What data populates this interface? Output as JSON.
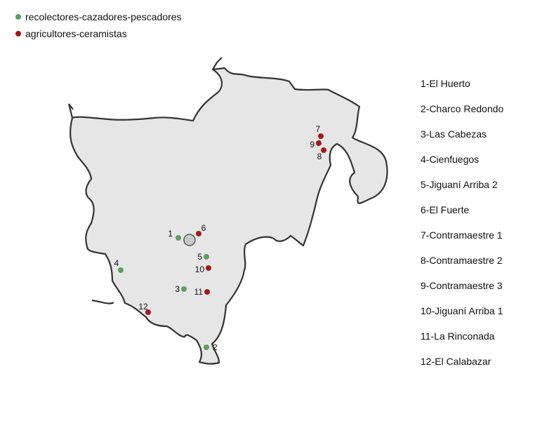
{
  "legend": {
    "hunter_gatherer": {
      "label": "recolectores-cazadores-pescadores",
      "color": "#5e9e5e"
    },
    "agro_ceramic": {
      "label": "agricultores-ceramistas",
      "color": "#a11a1a"
    }
  },
  "region": {
    "fill": "#e6e6e6",
    "stroke": "#333333"
  },
  "city_marker": {
    "fill": "#c8c8c8",
    "stroke": "#444444"
  },
  "sites": [
    {
      "num": "1",
      "type": "hunter_gatherer"
    },
    {
      "num": "2",
      "type": "hunter_gatherer"
    },
    {
      "num": "3",
      "type": "hunter_gatherer"
    },
    {
      "num": "4",
      "type": "hunter_gatherer"
    },
    {
      "num": "5",
      "type": "hunter_gatherer"
    },
    {
      "num": "6",
      "type": "agro_ceramic"
    },
    {
      "num": "7",
      "type": "agro_ceramic"
    },
    {
      "num": "8",
      "type": "agro_ceramic"
    },
    {
      "num": "9",
      "type": "agro_ceramic"
    },
    {
      "num": "10",
      "type": "agro_ceramic"
    },
    {
      "num": "11",
      "type": "agro_ceramic"
    },
    {
      "num": "12",
      "type": "agro_ceramic"
    }
  ],
  "site_list": [
    "1-El Huerto",
    "2-Charco Redondo",
    "3-Las Cabezas",
    "4-Cienfuegos",
    "5-Jiguaní Arriba 2",
    "6-El Fuerte",
    "7-Contramaestre 1",
    "8-Contramaestre 2",
    "9-Contramaestre 3",
    "10-Jiguaní Arriba 1",
    "11-La Rinconada",
    "12-El Calabazar"
  ]
}
